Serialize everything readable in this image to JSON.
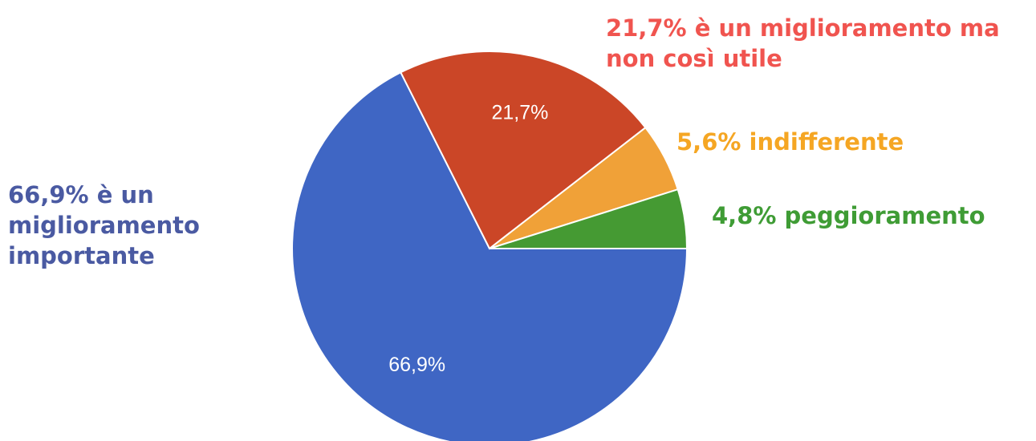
{
  "chart_data": {
    "type": "pie",
    "categories": [
      "è un miglioramento importante",
      "è un miglioramento ma non così utile",
      "indifferente",
      "peggioramento"
    ],
    "values": [
      66.9,
      21.7,
      5.6,
      4.8
    ],
    "value_labels": [
      "66,9%",
      "21,7%",
      "5,6%",
      "4,8%"
    ],
    "colors": [
      "#3f66c4",
      "#cb4627",
      "#f0a138",
      "#459a33"
    ],
    "label_colors": [
      "#4a5aa2",
      "#f0544f",
      "#f5a623",
      "#3f9c35"
    ]
  }
}
